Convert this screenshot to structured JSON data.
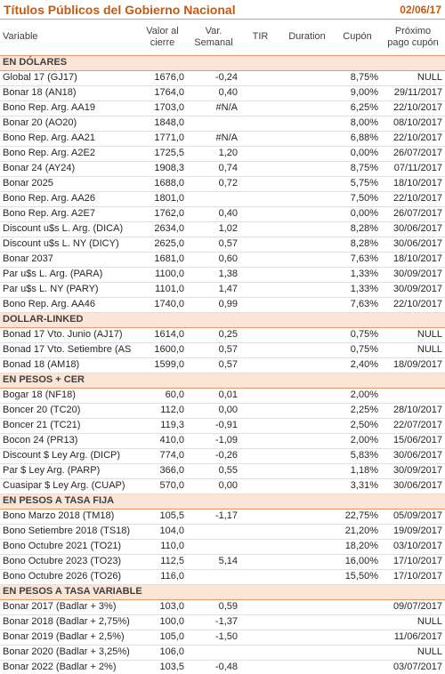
{
  "header": {
    "title": "Títulos Públicos del Gobierno Nacional",
    "date": "02/06/17"
  },
  "table": {
    "columns": [
      "Variable",
      "Valor al cierre",
      "Var. Semanal",
      "TIR",
      "Duration",
      "Cupón",
      "Próximo pago cupón"
    ],
    "sections": [
      {
        "title": "EN DÓLARES",
        "rows": [
          [
            "Global 17 (GJ17)",
            "1676,0",
            "-0,24",
            null,
            null,
            "8,75%",
            "NULL"
          ],
          [
            "Bonar 18 (AN18)",
            "1764,0",
            "0,40",
            null,
            null,
            "9,00%",
            "29/11/2017"
          ],
          [
            "Bono Rep. Arg. AA19",
            "1703,0",
            "#N/A",
            null,
            null,
            "6,25%",
            "22/10/2017"
          ],
          [
            "Bonar 20 (AO20)",
            "1848,0",
            null,
            null,
            null,
            "8,00%",
            "08/10/2017"
          ],
          [
            "Bono Rep. Arg. AA21",
            "1771,0",
            "#N/A",
            null,
            null,
            "6,88%",
            "22/10/2017"
          ],
          [
            "Bono Rep. Arg. A2E2",
            "1725,5",
            "1,20",
            null,
            null,
            "0,00%",
            "26/07/2017"
          ],
          [
            "Bonar 24 (AY24)",
            "1908,3",
            "0,74",
            null,
            null,
            "8,75%",
            "07/11/2017"
          ],
          [
            "Bonar 2025",
            "1688,0",
            "0,72",
            null,
            null,
            "5,75%",
            "18/10/2017"
          ],
          [
            "Bono Rep. Arg. AA26",
            "1801,0",
            null,
            null,
            null,
            "7,50%",
            "22/10/2017"
          ],
          [
            "Bono Rep. Arg. A2E7",
            "1762,0",
            "0,40",
            null,
            null,
            "0,00%",
            "26/07/2017"
          ],
          [
            "Discount u$s L. Arg. (DICA)",
            "2634,0",
            "1,02",
            null,
            null,
            "8,28%",
            "30/06/2017"
          ],
          [
            "Discount u$s L. NY (DICY)",
            "2625,0",
            "0,57",
            null,
            null,
            "8,28%",
            "30/06/2017"
          ],
          [
            "Bonar 2037",
            "1681,0",
            "0,60",
            null,
            null,
            "7,63%",
            "18/10/2017"
          ],
          [
            "Par u$s L. Arg. (PARA)",
            "1100,0",
            "1,38",
            null,
            null,
            "1,33%",
            "30/09/2017"
          ],
          [
            "Par u$s L. NY (PARY)",
            "1101,0",
            "1,47",
            null,
            null,
            "1,33%",
            "30/09/2017"
          ],
          [
            "Bono Rep. Arg. AA46",
            "1740,0",
            "0,99",
            null,
            null,
            "7,63%",
            "22/10/2017"
          ]
        ]
      },
      {
        "title": "DOLLAR-LINKED",
        "rows": [
          [
            "Bonad 17 Vto. Junio (AJ17)",
            "1614,0",
            "0,25",
            null,
            null,
            "0,75%",
            "NULL"
          ],
          [
            "Bonad 17 Vto. Setiembre (AS",
            "1600,0",
            "0,57",
            null,
            null,
            "0,75%",
            "NULL"
          ],
          [
            "Bonad 18 (AM18)",
            "1599,0",
            "0,57",
            null,
            null,
            "2,40%",
            "18/09/2017"
          ]
        ]
      },
      {
        "title": "EN PESOS + CER",
        "rows": [
          [
            "Bogar 18 (NF18)",
            "60,0",
            "0,01",
            null,
            null,
            "2,00%",
            null
          ],
          [
            "Boncer 20 (TC20)",
            "112,0",
            "0,00",
            null,
            null,
            "2,25%",
            "28/10/2017"
          ],
          [
            "Boncer 21 (TC21)",
            "119,3",
            "-0,91",
            null,
            null,
            "2,50%",
            "22/07/2017"
          ],
          [
            "Bocon 24 (PR13)",
            "410,0",
            "-1,09",
            null,
            null,
            "2,00%",
            "15/06/2017"
          ],
          [
            "Discount $ Ley Arg. (DICP)",
            "774,0",
            "-0,26",
            null,
            null,
            "5,83%",
            "30/06/2017"
          ],
          [
            "Par $ Ley Arg. (PARP)",
            "366,0",
            "0,55",
            null,
            null,
            "1,18%",
            "30/09/2017"
          ],
          [
            "Cuasipar $ Ley Arg. (CUAP)",
            "570,0",
            "0,00",
            null,
            null,
            "3,31%",
            "30/06/2017"
          ]
        ]
      },
      {
        "title": "EN PESOS A TASA FIJA",
        "rows": [
          [
            "Bono Marzo 2018 (TM18)",
            "105,5",
            "-1,17",
            null,
            null,
            "22,75%",
            "05/09/2017"
          ],
          [
            "Bono Setiembre 2018 (TS18)",
            "104,0",
            null,
            null,
            null,
            "21,20%",
            "19/09/2017"
          ],
          [
            "Bono Octubre 2021 (TO21)",
            "110,0",
            null,
            null,
            null,
            "18,20%",
            "03/10/2017"
          ],
          [
            "Bono Octubre 2023 (TO23)",
            "112,5",
            "5,14",
            null,
            null,
            "16,00%",
            "17/10/2017"
          ],
          [
            "Bono Octubre 2026 (TO26)",
            "116,0",
            null,
            null,
            null,
            "15,50%",
            "17/10/2017"
          ]
        ]
      },
      {
        "title": "EN PESOS A TASA VARIABLE",
        "rows": [
          [
            "Bonar 2017 (Badlar + 3%)",
            "103,0",
            "0,59",
            null,
            null,
            null,
            "09/07/2017"
          ],
          [
            "Bonar 2018 (Badlar + 2,75%)",
            "100,0",
            "-1,37",
            null,
            null,
            null,
            "NULL"
          ],
          [
            "Bonar 2019 (Badlar + 2,5%)",
            "105,0",
            "-1,50",
            null,
            null,
            null,
            "11/06/2017"
          ],
          [
            "Bonar 2020 (Badlar + 3,25%)",
            "106,0",
            null,
            null,
            null,
            null,
            "NULL"
          ],
          [
            "Bonar 2022 (Badlar + 2%)",
            "103,5",
            "-0,48",
            null,
            null,
            null,
            "03/07/2017"
          ]
        ]
      }
    ]
  }
}
